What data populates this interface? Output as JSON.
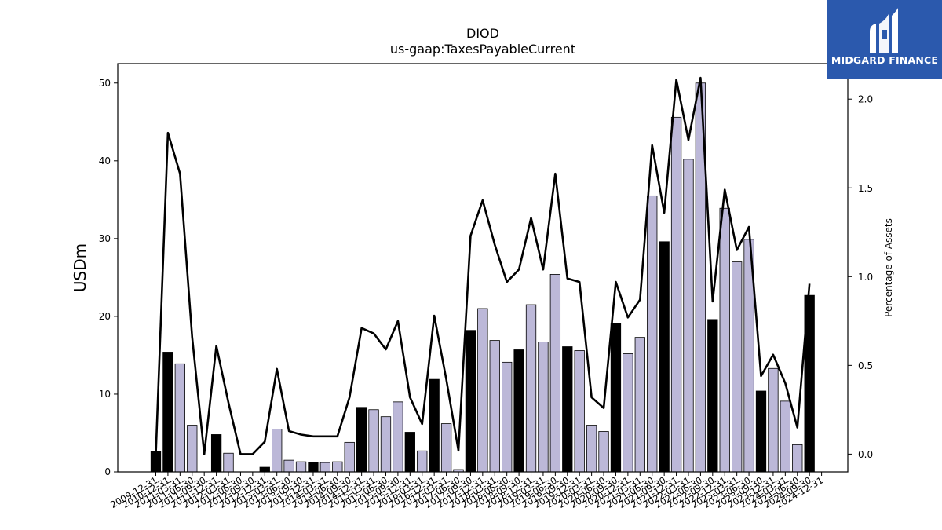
{
  "chart_data": {
    "type": "bar+line",
    "title": "DIOD",
    "subtitle": "us-gaap:TaxesPayableCurrent",
    "ylabel": "USDm",
    "y2label": "Percentage of Assets",
    "ylim": [
      0,
      52.5
    ],
    "y2lim": [
      -0.1,
      2.2
    ],
    "yticks": [
      0,
      10,
      20,
      30,
      40,
      50
    ],
    "y2ticks": [
      0.0,
      0.5,
      1.0,
      1.5,
      2.0
    ],
    "grid": false,
    "colors": {
      "annual_bar": "#000000",
      "quarterly_bar": "#bcb8d8",
      "bar_edge": "#000000",
      "line": "#000000"
    },
    "categories": [
      "2009-12-31",
      "2010-12-31",
      "2011-03-31",
      "2011-06-30",
      "2011-09-30",
      "2011-12-31",
      "2012-03-31",
      "2012-06-30",
      "2012-09-30",
      "2012-12-31",
      "2013-03-31",
      "2013-06-30",
      "2013-09-30",
      "2013-12-31",
      "2014-03-31",
      "2014-06-30",
      "2014-09-30",
      "2014-12-31",
      "2015-03-31",
      "2015-06-30",
      "2015-09-30",
      "2015-12-31",
      "2016-03-31",
      "2016-12-31",
      "2017-03-31",
      "2017-06-30",
      "2017-09-30",
      "2017-12-31",
      "2018-03-31",
      "2018-06-30",
      "2018-09-30",
      "2018-12-31",
      "2019-03-31",
      "2019-06-30",
      "2019-09-30",
      "2019-12-31",
      "2020-03-31",
      "2020-06-30",
      "2020-09-30",
      "2020-12-31",
      "2021-03-31",
      "2021-06-30",
      "2021-09-30",
      "2021-12-31",
      "2022-03-31",
      "2022-06-30",
      "2022-09-30",
      "2022-12-31",
      "2023-03-31",
      "2023-06-30",
      "2023-09-30",
      "2023-12-31",
      "2024-03-31",
      "2024-06-30",
      "2024-09-30",
      "2024-12-31"
    ],
    "series": [
      {
        "type": "bar",
        "axis": "left",
        "values": [
          2.6,
          15.4,
          13.9,
          6.0,
          0.0,
          4.8,
          2.4,
          0.0,
          0.0,
          0.6,
          5.5,
          1.5,
          1.3,
          1.2,
          1.2,
          1.3,
          3.8,
          8.3,
          8.0,
          7.1,
          9.0,
          5.1,
          2.7,
          11.9,
          6.2,
          0.3,
          18.2,
          21.0,
          16.9,
          14.1,
          15.7,
          21.5,
          16.7,
          25.4,
          16.1,
          15.6,
          6.0,
          5.2,
          19.1,
          15.2,
          17.3,
          35.5,
          29.6,
          45.6,
          40.2,
          50.0,
          19.6,
          33.9,
          27.0,
          29.9,
          10.4,
          13.3,
          9.1,
          3.5,
          22.7,
          0.0
        ],
        "annual": [
          true,
          true,
          false,
          false,
          false,
          true,
          false,
          false,
          false,
          true,
          false,
          false,
          false,
          true,
          false,
          false,
          false,
          true,
          false,
          false,
          false,
          true,
          false,
          true,
          false,
          false,
          true,
          false,
          false,
          false,
          true,
          false,
          false,
          false,
          true,
          false,
          false,
          false,
          true,
          false,
          false,
          false,
          true,
          false,
          false,
          false,
          true,
          false,
          false,
          false,
          true,
          false,
          false,
          false,
          true,
          false
        ]
      },
      {
        "type": "line",
        "axis": "right",
        "values": [
          0.0,
          1.81,
          1.58,
          0.66,
          0.0,
          0.61,
          0.29,
          0.0,
          0.0,
          0.07,
          0.48,
          0.13,
          0.11,
          0.1,
          0.1,
          0.1,
          0.32,
          0.71,
          0.68,
          0.59,
          0.75,
          0.32,
          0.17,
          0.78,
          0.42,
          0.02,
          1.23,
          1.43,
          1.18,
          0.97,
          1.04,
          1.33,
          1.04,
          1.58,
          0.99,
          0.97,
          0.32,
          0.26,
          0.97,
          0.77,
          0.87,
          1.74,
          1.36,
          2.11,
          1.77,
          2.12,
          0.86,
          1.49,
          1.15,
          1.28,
          0.44,
          0.56,
          0.4,
          0.15,
          0.96,
          null
        ]
      }
    ]
  },
  "logo": {
    "text": "MIDGARD FINANCE"
  }
}
